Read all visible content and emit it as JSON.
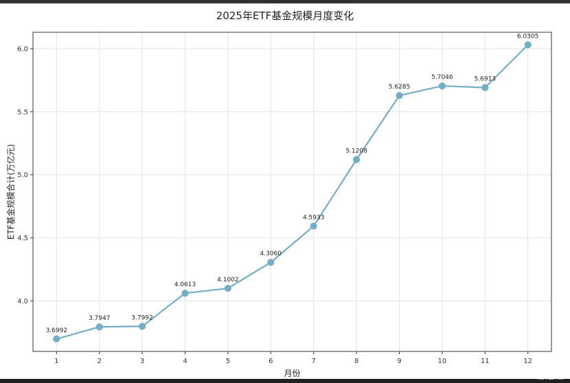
{
  "chart_data": {
    "type": "line",
    "title": "2025年ETF基金规模月度变化",
    "xlabel": "月份",
    "ylabel": "ETF基金规模合计(万亿元)",
    "x": [
      1,
      2,
      3,
      4,
      5,
      6,
      7,
      8,
      9,
      10,
      11,
      12
    ],
    "x_tick_labels": [
      "1",
      "2",
      "3",
      "4",
      "5",
      "6",
      "7",
      "8",
      "9",
      "10",
      "11",
      "12"
    ],
    "series": [
      {
        "values": [
          3.6992,
          3.7947,
          3.7992,
          4.0613,
          4.1002,
          4.306,
          4.5933,
          5.1208,
          5.6285,
          5.7046,
          5.6913,
          6.0305
        ],
        "data_labels": [
          "3.6992",
          "3.7947",
          "3.7992",
          "4.0613",
          "4.1002",
          "4.3060",
          "4.5933",
          "5.1208",
          "5.6285",
          "5.7046",
          "5.6913",
          "6.0305"
        ],
        "color": "#74aec4"
      }
    ],
    "xlim": [
      0.45,
      12.55
    ],
    "ylim": [
      3.6,
      6.13
    ],
    "y_ticks": [
      4.0,
      4.5,
      5.0,
      5.5,
      6.0
    ],
    "y_tick_labels": [
      "4.0",
      "4.5",
      "5.0",
      "5.5",
      "6.0"
    ],
    "grid": true
  },
  "watermark": "格隆汇"
}
